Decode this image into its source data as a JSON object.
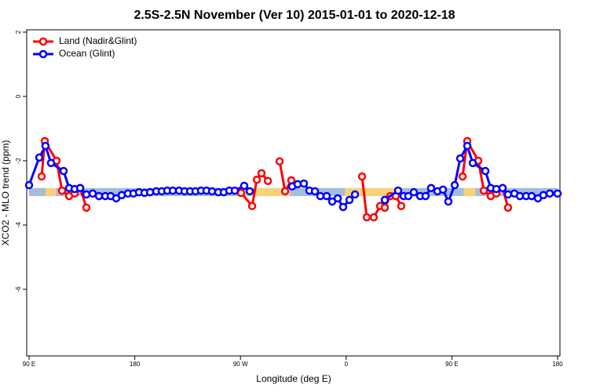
{
  "chart_data": {
    "type": "line",
    "title": "2.5S-2.5N November (Ver 10)   2015-01-01 to 2020-12-18",
    "xlabel": "Longitude (deg E)",
    "ylabel": "XCO2 - MLO trend (ppm)",
    "xlim": [
      90,
      540
    ],
    "ylim": [
      -8,
      2
    ],
    "xticks": [
      {
        "value": 90,
        "label": "90 E"
      },
      {
        "value": 180,
        "label": "180"
      },
      {
        "value": 270,
        "label": "90 W"
      },
      {
        "value": 360,
        "label": "0"
      },
      {
        "value": 450,
        "label": "90 E"
      },
      {
        "value": 540,
        "label": "180"
      }
    ],
    "yticks": [
      2,
      0,
      -2,
      -4,
      -6
    ],
    "legend": "top-left",
    "band": {
      "range": [
        -3.1,
        -2.85
      ],
      "color": "#a3bddc",
      "highlight_color": "#f7d27a",
      "highlights": [
        [
          104,
          113
        ],
        [
          123,
          128
        ],
        [
          269,
          312
        ],
        [
          359,
          406
        ],
        [
          460,
          470
        ]
      ]
    },
    "series": [
      {
        "name": "Land (Nadir&Glint)",
        "color": "#ff0000",
        "x": [
          100.7,
          103.4,
          113.4,
          118.1,
          124.1,
          128.8,
          133.5,
          138.8,
          null,
          270.5,
          279.9,
          283.9,
          287.9,
          293.3,
          null,
          303.3,
          308.0,
          313.3,
          null,
          373.5,
          377.5,
          383.5,
          388.9,
          392.9,
          397.6,
          402.2,
          406.9,
          null,
          459.1,
          463.1,
          472.5,
          477.2,
          483.1,
          487.8,
          493.2,
          497.8
        ],
        "values": [
          -2.49,
          -1.39,
          -2.0,
          -2.93,
          -3.1,
          -3.02,
          -2.85,
          -3.46,
          null,
          -3.0,
          -3.41,
          -2.59,
          -2.39,
          -2.63,
          null,
          -2.02,
          -2.95,
          -2.61,
          null,
          -2.49,
          -3.76,
          -3.76,
          -3.41,
          -3.46,
          -3.1,
          -3.1,
          -3.41,
          null,
          -2.49,
          -1.39,
          -2.0,
          -2.93,
          -3.1,
          -3.02,
          -2.85,
          -3.46
        ]
      },
      {
        "name": "Ocean (Glint)",
        "color": "#0000ff",
        "x": [
          90,
          98.7,
          104.0,
          108.7,
          119.4,
          124.1,
          128.8,
          133.5,
          138.8,
          144.2,
          149.5,
          154.9,
          159.5,
          164.2,
          168.9,
          174.2,
          178.9,
          183.6,
          188.3,
          193.0,
          198.3,
          203.0,
          207.7,
          212.4,
          217.7,
          222.4,
          227.1,
          231.7,
          236.4,
          241.1,
          245.8,
          251.1,
          255.8,
          260.5,
          265.2,
          273.2,
          277.9,
          null,
          314.0,
          318.7,
          324.0,
          328.7,
          333.4,
          338.0,
          343.4,
          348.1,
          352.8,
          357.4,
          362.8,
          367.5,
          null,
          392.9,
          404.2,
          408.9,
          412.9,
          417.6,
          423.0,
          427.6,
          432.3,
          437.7,
          442.4,
          447.0,
          452.4,
          457.1,
          463.1,
          467.8,
          478.5,
          483.1,
          487.8,
          493.2,
          497.8,
          503.2,
          507.9,
          513.2,
          517.9,
          523.3,
          527.9,
          533.3,
          540
        ],
        "values": [
          -2.76,
          -1.9,
          -1.54,
          -2.07,
          -2.32,
          -2.85,
          -2.88,
          -2.85,
          -3.05,
          -3.02,
          -3.1,
          -3.1,
          -3.1,
          -3.17,
          -3.07,
          -3.02,
          -3.02,
          -2.98,
          -3.0,
          -2.98,
          -2.95,
          -2.95,
          -2.93,
          -2.93,
          -2.93,
          -2.95,
          -2.95,
          -2.95,
          -2.93,
          -2.93,
          -2.95,
          -2.98,
          -2.98,
          -2.93,
          -2.93,
          -2.78,
          -2.95,
          null,
          -2.8,
          -2.73,
          -2.71,
          -2.93,
          -2.95,
          -3.1,
          -3.1,
          -3.27,
          -3.17,
          -3.44,
          -3.22,
          -3.05,
          null,
          -3.22,
          -2.93,
          -3.1,
          -3.1,
          -2.98,
          -3.1,
          -3.1,
          -2.85,
          -2.95,
          -2.9,
          -3.27,
          -2.76,
          -1.93,
          -1.54,
          -2.07,
          -2.32,
          -2.85,
          -2.88,
          -2.85,
          -3.05,
          -3.02,
          -3.1,
          -3.1,
          -3.1,
          -3.17,
          -3.07,
          -3.02,
          -3.02
        ]
      }
    ]
  }
}
